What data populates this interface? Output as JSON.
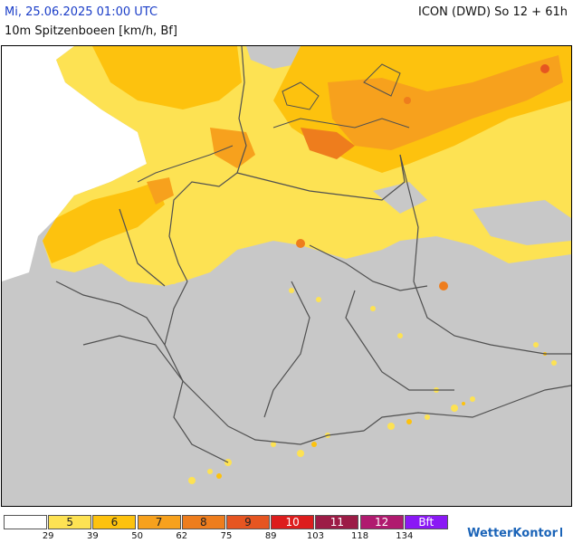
{
  "header": {
    "valid_time": "Mi, 25.06.2025 01:00 UTC",
    "parameter": "10m Spitzenboeen [km/h, Bf]",
    "model_run": "ICON (DWD) So 12 + 61h"
  },
  "legend": {
    "bands": [
      {
        "bf": "",
        "color": "#ffffff"
      },
      {
        "bf": "5",
        "color": "#fde253"
      },
      {
        "bf": "6",
        "color": "#fdc20e"
      },
      {
        "bf": "7",
        "color": "#f7a11d"
      },
      {
        "bf": "8",
        "color": "#ee7d1d"
      },
      {
        "bf": "9",
        "color": "#e65521"
      },
      {
        "bf": "10",
        "color": "#dd1d1d"
      },
      {
        "bf": "11",
        "color": "#9c1c46"
      },
      {
        "bf": "12",
        "color": "#b01a6f"
      },
      {
        "bf": "Bft",
        "color": "#8a18f5"
      }
    ],
    "kmh": [
      "29",
      "39",
      "50",
      "62",
      "75",
      "89",
      "103",
      "118",
      "134"
    ]
  },
  "brand": {
    "name": "WetterKontor"
  },
  "colors": {
    "land_calm": "#c8c8c8",
    "sea_calm": "#ffffff",
    "border": "#505050"
  }
}
